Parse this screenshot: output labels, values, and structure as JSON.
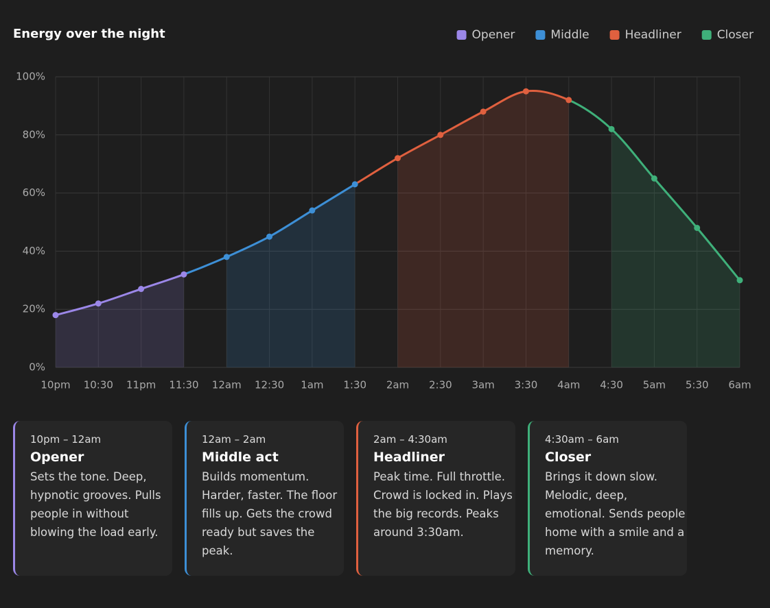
{
  "chart_data": {
    "type": "line",
    "title": "Energy over the night",
    "categories": [
      "10pm",
      "10:30",
      "11pm",
      "11:30",
      "12am",
      "12:30",
      "1am",
      "1:30",
      "2am",
      "2:30",
      "3am",
      "3:30",
      "4am",
      "4:30",
      "5am",
      "5:30",
      "6am"
    ],
    "series": [
      {
        "name": "Opener",
        "color": "#9b87e8",
        "values": [
          18,
          22,
          27,
          32,
          null,
          null,
          null,
          null,
          null,
          null,
          null,
          null,
          null,
          null,
          null,
          null,
          null
        ]
      },
      {
        "name": "Middle",
        "color": "#3d8fd6",
        "values": [
          null,
          null,
          null,
          null,
          38,
          45,
          54,
          63,
          null,
          null,
          null,
          null,
          null,
          null,
          null,
          null,
          null
        ]
      },
      {
        "name": "Headliner",
        "color": "#e0603f",
        "values": [
          null,
          null,
          null,
          null,
          null,
          null,
          null,
          null,
          72,
          80,
          88,
          95,
          92,
          null,
          null,
          null,
          null
        ]
      },
      {
        "name": "Closer",
        "color": "#3fb07a",
        "values": [
          null,
          null,
          null,
          null,
          null,
          null,
          null,
          null,
          null,
          null,
          null,
          null,
          null,
          82,
          65,
          48,
          30
        ]
      }
    ],
    "ylim": [
      0,
      100
    ],
    "yticks": [
      {
        "value": 0,
        "label": "0%"
      },
      {
        "value": 20,
        "label": "20%"
      },
      {
        "value": 40,
        "label": "40%"
      },
      {
        "value": 60,
        "label": "60%"
      },
      {
        "value": 80,
        "label": "80%"
      },
      {
        "value": 100,
        "label": "100%"
      }
    ],
    "grid": true,
    "legend": "top-right"
  },
  "cards": [
    {
      "time": "10pm – 12am",
      "title": "Opener",
      "body": "Sets the tone. Deep, hypnotic grooves. Pulls people in without blowing the load early."
    },
    {
      "time": "12am – 2am",
      "title": "Middle act",
      "body": "Builds momentum. Harder, faster. The floor fills up. Gets the crowd ready but saves the peak."
    },
    {
      "time": "2am – 4:30am",
      "title": "Headliner",
      "body": "Peak time. Full throttle. Crowd is locked in. Plays the big records. Peaks around 3:30am."
    },
    {
      "time": "4:30am – 6am",
      "title": "Closer",
      "body": "Brings it down slow. Melodic, deep, emotional. Sends people home with a smile and a memory."
    }
  ]
}
